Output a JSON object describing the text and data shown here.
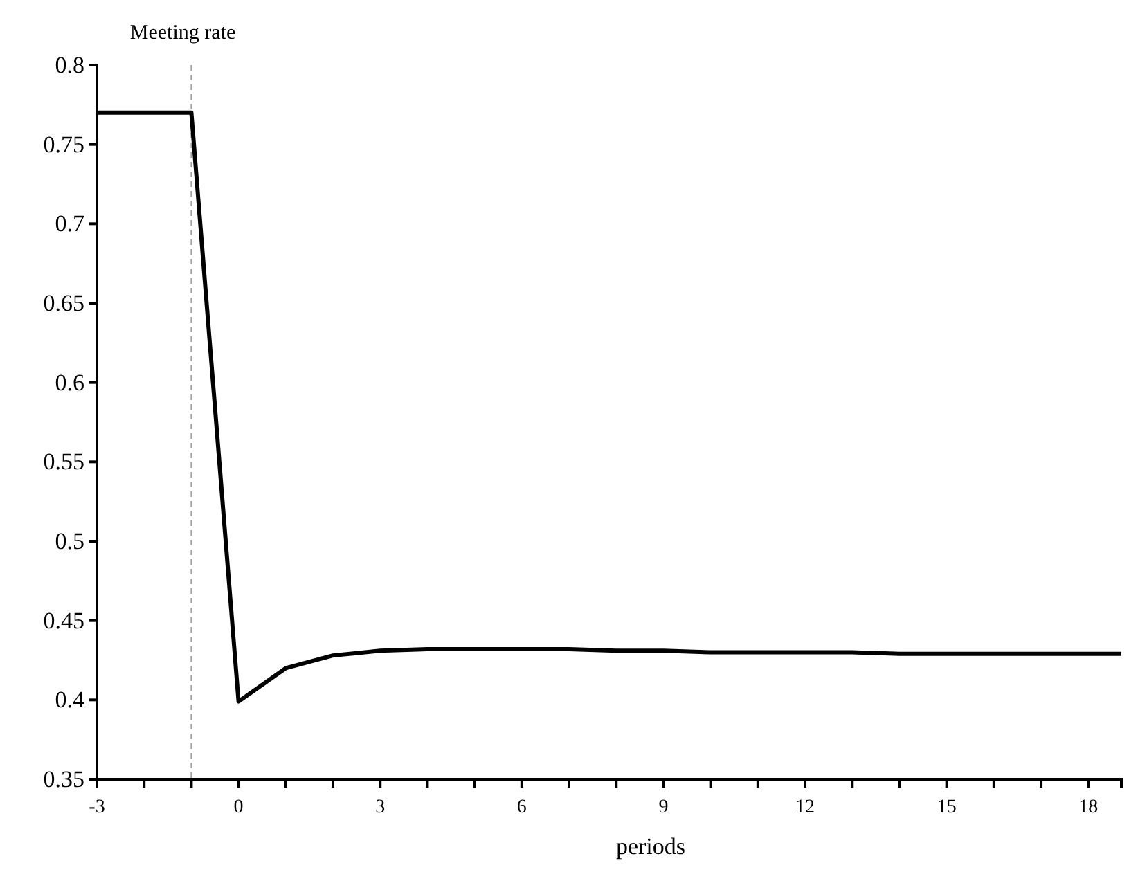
{
  "chart_data": {
    "type": "line",
    "title": "Meeting rate",
    "xlabel": "periods",
    "x": [
      -3,
      -2,
      -1,
      0,
      1,
      2,
      3,
      4,
      5,
      6,
      7,
      8,
      9,
      10,
      11,
      12,
      13,
      14,
      15,
      16,
      17,
      18,
      18.7
    ],
    "series": [
      {
        "color": "#000000",
        "values": [
          0.77,
          0.77,
          0.77,
          0.399,
          0.42,
          0.428,
          0.431,
          0.432,
          0.432,
          0.432,
          0.432,
          0.431,
          0.431,
          0.43,
          0.43,
          0.43,
          0.43,
          0.429,
          0.429,
          0.429,
          0.429,
          0.429,
          0.429
        ]
      }
    ],
    "xlim": [
      -3,
      18.7
    ],
    "xticks": [
      -3,
      {
        "value": -2,
        "label": null
      },
      {
        "value": -1,
        "label": null
      },
      0,
      {
        "value": 1,
        "label": null
      },
      {
        "value": 2,
        "label": null
      },
      3,
      {
        "value": 4,
        "label": null
      },
      {
        "value": 5,
        "label": null
      },
      6,
      {
        "value": 7,
        "label": null
      },
      {
        "value": 8,
        "label": null
      },
      9,
      {
        "value": 10,
        "label": null
      },
      {
        "value": 11,
        "label": null
      },
      12,
      {
        "value": 13,
        "label": null
      },
      {
        "value": 14,
        "label": null
      },
      15,
      {
        "value": 16,
        "label": null
      },
      {
        "value": 17,
        "label": null
      },
      18
    ],
    "ylim": [
      0.35,
      0.8
    ],
    "yticks": [
      0.35,
      0.4,
      0.45,
      0.5,
      0.55,
      0.6,
      0.65,
      0.7,
      0.75,
      0.8
    ],
    "ref_lines": [
      {
        "axis": "x",
        "value": -1,
        "color": "#a0a0a0",
        "line_style": "dashed"
      }
    ],
    "marker": "none",
    "line_style": "solid"
  }
}
